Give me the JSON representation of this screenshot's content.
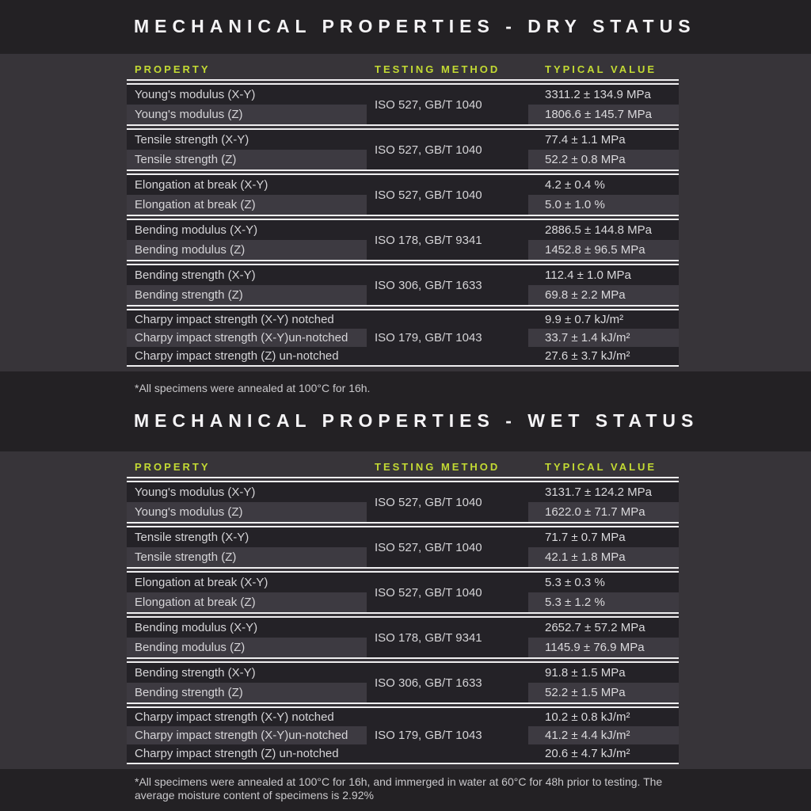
{
  "accent_color": "#c3da33",
  "panel_color": "#373439",
  "band_color": "#232124",
  "sections": [
    {
      "title": "MECHANICAL PROPERTIES - DRY STATUS",
      "headers": {
        "property": "PROPERTY",
        "method": "TESTING METHOD",
        "value": "TYPICAL VALUE"
      },
      "groups": [
        {
          "method": "ISO 527, GB/T 1040",
          "rows": [
            {
              "property": "Young's modulus (X-Y)",
              "value": "3311.2 ± 134.9 MPa"
            },
            {
              "property": "Young's modulus (Z)",
              "value": "1806.6 ± 145.7 MPa"
            }
          ]
        },
        {
          "method": "ISO 527, GB/T 1040",
          "rows": [
            {
              "property": "Tensile strength (X-Y)",
              "value": "77.4 ± 1.1 MPa"
            },
            {
              "property": "Tensile strength (Z)",
              "value": "52.2 ± 0.8 MPa"
            }
          ]
        },
        {
          "method": "ISO 527, GB/T 1040",
          "rows": [
            {
              "property": "Elongation at break (X-Y)",
              "value": "4.2 ± 0.4 %"
            },
            {
              "property": "Elongation at break (Z)",
              "value": "5.0 ± 1.0 %"
            }
          ]
        },
        {
          "method": "ISO 178, GB/T 9341",
          "rows": [
            {
              "property": "Bending modulus (X-Y)",
              "value": "2886.5 ± 144.8 MPa"
            },
            {
              "property": "Bending modulus (Z)",
              "value": "1452.8 ± 96.5 MPa"
            }
          ]
        },
        {
          "method": "ISO 306, GB/T 1633",
          "rows": [
            {
              "property": "Bending strength (X-Y)",
              "value": "112.4 ± 1.0 MPa"
            },
            {
              "property": "Bending strength (Z)",
              "value": "69.8 ± 2.2 MPa"
            }
          ]
        },
        {
          "method": "ISO 179, GB/T 1043",
          "rows": [
            {
              "property": "Charpy impact strength (X-Y) notched",
              "value": "9.9 ± 0.7 kJ/m²"
            },
            {
              "property": "Charpy impact strength (X-Y)un-notched",
              "value": "33.7 ± 1.4 kJ/m²"
            },
            {
              "property": "Charpy impact strength (Z) un-notched",
              "value": "27.6 ± 3.7 kJ/m²"
            }
          ]
        }
      ],
      "footnote": "*All specimens were annealed at 100°C for 16h."
    },
    {
      "title": "MECHANICAL PROPERTIES - WET STATUS",
      "headers": {
        "property": "PROPERTY",
        "method": "TESTING METHOD",
        "value": "TYPICAL VALUE"
      },
      "groups": [
        {
          "method": "ISO 527, GB/T 1040",
          "rows": [
            {
              "property": "Young's modulus (X-Y)",
              "value": "3131.7 ± 124.2 MPa"
            },
            {
              "property": "Young's modulus (Z)",
              "value": "1622.0 ± 71.7 MPa"
            }
          ]
        },
        {
          "method": "ISO 527, GB/T 1040",
          "rows": [
            {
              "property": "Tensile strength (X-Y)",
              "value": "71.7 ± 0.7 MPa"
            },
            {
              "property": "Tensile strength (Z)",
              "value": "42.1 ± 1.8 MPa"
            }
          ]
        },
        {
          "method": "ISO 527, GB/T 1040",
          "rows": [
            {
              "property": "Elongation at break (X-Y)",
              "value": "5.3 ± 0.3 %"
            },
            {
              "property": "Elongation at break (Z)",
              "value": "5.3 ± 1.2 %"
            }
          ]
        },
        {
          "method": "ISO 178, GB/T 9341",
          "rows": [
            {
              "property": "Bending modulus (X-Y)",
              "value": "2652.7 ± 57.2 MPa"
            },
            {
              "property": "Bending modulus (Z)",
              "value": "1145.9 ± 76.9 MPa"
            }
          ]
        },
        {
          "method": "ISO 306, GB/T 1633",
          "rows": [
            {
              "property": "Bending strength (X-Y)",
              "value": "91.8 ± 1.5 MPa"
            },
            {
              "property": "Bending strength (Z)",
              "value": "52.2 ± 1.5 MPa"
            }
          ]
        },
        {
          "method": "ISO 179, GB/T 1043",
          "rows": [
            {
              "property": "Charpy impact strength (X-Y) notched",
              "value": "10.2 ± 0.8 kJ/m²"
            },
            {
              "property": "Charpy impact strength (X-Y)un-notched",
              "value": "41.2 ± 4.4 kJ/m²"
            },
            {
              "property": "Charpy impact strength (Z) un-notched",
              "value": "20.6 ± 4.7 kJ/m²"
            }
          ]
        }
      ],
      "footnote": "*All specimens were annealed at 100°C for 16h, and immerged in water at 60°C for 48h prior to testing. The average moisture content of specimens is 2.92%"
    }
  ]
}
